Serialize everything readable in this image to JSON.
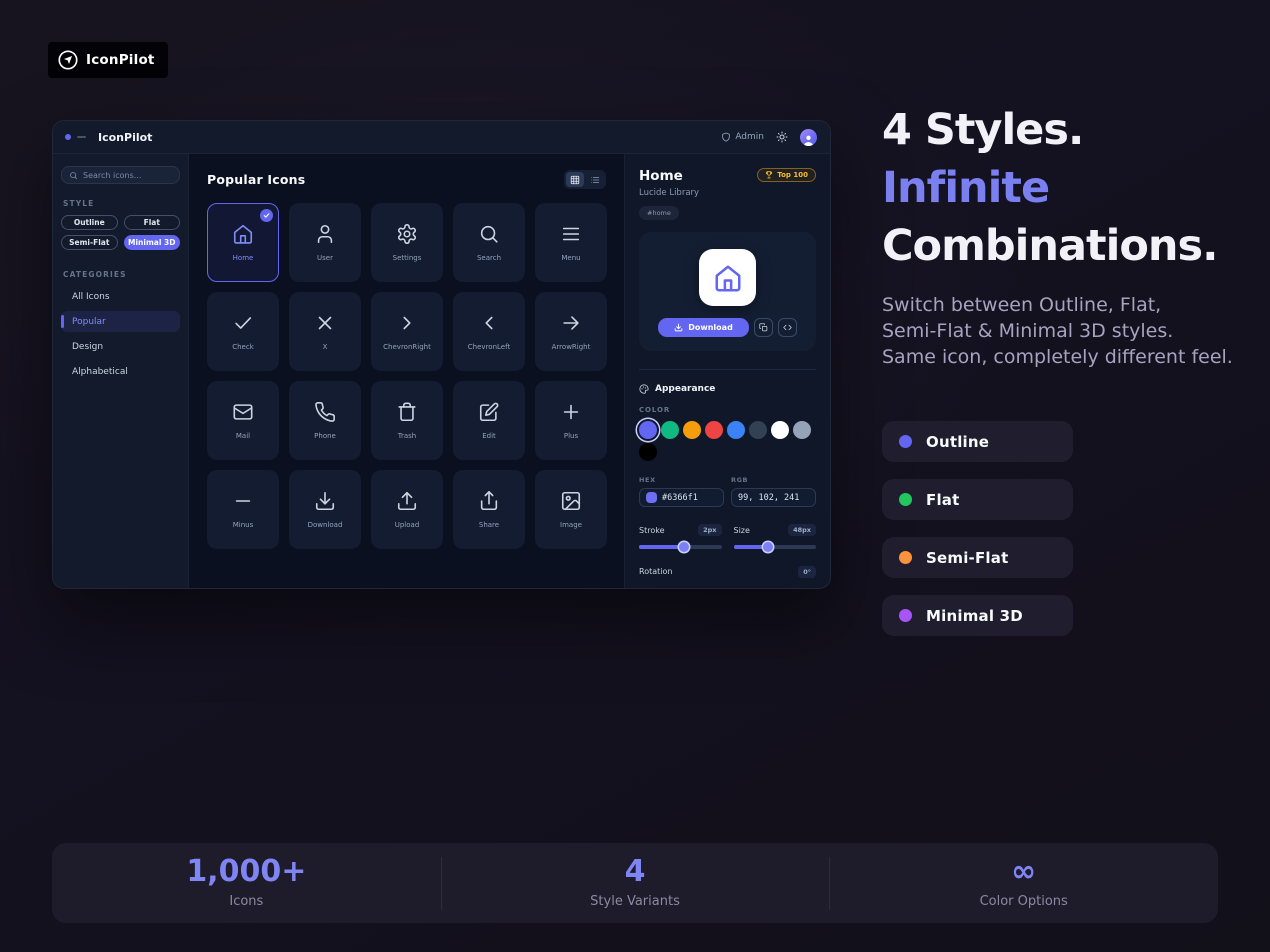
{
  "logo": {
    "text": "IconPilot",
    "icon": "navigation-circle-icon"
  },
  "app": {
    "header": {
      "title": "IconPilot",
      "admin_label": "Admin",
      "admin_icon": "shield-icon",
      "theme_icon": "sun-icon",
      "avatar_icon": "user-avatar-icon"
    },
    "sidebar": {
      "search_placeholder": "Search icons...",
      "search_icon": "search-icon",
      "style_label": "STYLE",
      "styles": [
        {
          "label": "Outline",
          "active": false
        },
        {
          "label": "Flat",
          "active": false
        },
        {
          "label": "Semi-Flat",
          "active": false
        },
        {
          "label": "Minimal 3D",
          "active": true
        }
      ],
      "categories_label": "CATEGORIES",
      "categories": [
        {
          "label": "All Icons",
          "active": false
        },
        {
          "label": "Popular",
          "active": true
        },
        {
          "label": "Design",
          "active": false
        },
        {
          "label": "Alphabetical",
          "active": false
        }
      ]
    },
    "main": {
      "title": "Popular Icons",
      "view_modes": [
        "grid-view-icon",
        "list-view-icon"
      ],
      "active_view": "grid",
      "icons": [
        {
          "name": "home",
          "label": "Home",
          "selected": true
        },
        {
          "name": "user",
          "label": "User",
          "selected": false
        },
        {
          "name": "settings",
          "label": "Settings",
          "selected": false
        },
        {
          "name": "search",
          "label": "Search",
          "selected": false
        },
        {
          "name": "menu",
          "label": "Menu",
          "selected": false
        },
        {
          "name": "check",
          "label": "Check",
          "selected": false
        },
        {
          "name": "x",
          "label": "X",
          "selected": false
        },
        {
          "name": "chevron-right",
          "label": "ChevronRight",
          "selected": false
        },
        {
          "name": "chevron-left",
          "label": "ChevronLeft",
          "selected": false
        },
        {
          "name": "arrow-right",
          "label": "ArrowRight",
          "selected": false
        },
        {
          "name": "mail",
          "label": "Mail",
          "selected": false
        },
        {
          "name": "phone",
          "label": "Phone",
          "selected": false
        },
        {
          "name": "trash",
          "label": "Trash",
          "selected": false
        },
        {
          "name": "edit",
          "label": "Edit",
          "selected": false
        },
        {
          "name": "plus",
          "label": "Plus",
          "selected": false
        },
        {
          "name": "minus",
          "label": "Minus",
          "selected": false
        },
        {
          "name": "download",
          "label": "Download",
          "selected": false
        },
        {
          "name": "upload",
          "label": "Upload",
          "selected": false
        },
        {
          "name": "share",
          "label": "Share",
          "selected": false
        },
        {
          "name": "image",
          "label": "Image",
          "selected": false
        }
      ]
    },
    "detail": {
      "title": "Home",
      "top_badge": "Top 100",
      "badge_icon": "trophy-icon",
      "library": "Lucide Library",
      "tag": "#home",
      "preview_icon": "home",
      "download_label": "Download",
      "download_icon": "download-icon",
      "copy_icon": "copy-icon",
      "code_icon": "code-icon",
      "appearance_label": "Appearance",
      "appearance_icon": "palette-icon",
      "color_label": "COLOR",
      "swatches": [
        {
          "color": "#6366f1",
          "selected": true
        },
        {
          "color": "#10b981",
          "selected": false
        },
        {
          "color": "#f59e0b",
          "selected": false
        },
        {
          "color": "#ef4444",
          "selected": false
        },
        {
          "color": "#3b82f6",
          "selected": false
        },
        {
          "color": "#334155",
          "selected": false
        },
        {
          "color": "#ffffff",
          "selected": false
        },
        {
          "color": "#94a3b8",
          "selected": false
        },
        {
          "color": "#000000",
          "selected": false
        }
      ],
      "hex": {
        "label": "HEX",
        "value": "#6366f1"
      },
      "rgb": {
        "label": "RGB",
        "value": "99, 102, 241"
      },
      "stroke": {
        "label": "Stroke",
        "value": "2px",
        "pct": 55
      },
      "size": {
        "label": "Size",
        "value": "48px",
        "pct": 42
      },
      "rotation": {
        "label": "Rotation",
        "value": "0°"
      }
    }
  },
  "hero": {
    "accent_color": "#818cf8",
    "heading": [
      {
        "text": "4 Styles.",
        "accent": false
      },
      {
        "text": "Infinite",
        "accent": true
      },
      {
        "text": "Combinations.",
        "accent": false
      }
    ],
    "subtext_lines": [
      "Switch between Outline, Flat,",
      "Semi-Flat & Minimal 3D styles.",
      "Same icon, completely different feel."
    ],
    "chips": [
      {
        "label": "Outline",
        "color": "#6366f1"
      },
      {
        "label": "Flat",
        "color": "#22c55e"
      },
      {
        "label": "Semi-Flat",
        "color": "#fb923c"
      },
      {
        "label": "Minimal 3D",
        "color": "#a855f7"
      }
    ]
  },
  "stats": [
    {
      "value": "1,000+",
      "label": "Icons"
    },
    {
      "value": "4",
      "label": "Style Variants"
    },
    {
      "value": "∞",
      "label": "Color Options"
    }
  ]
}
